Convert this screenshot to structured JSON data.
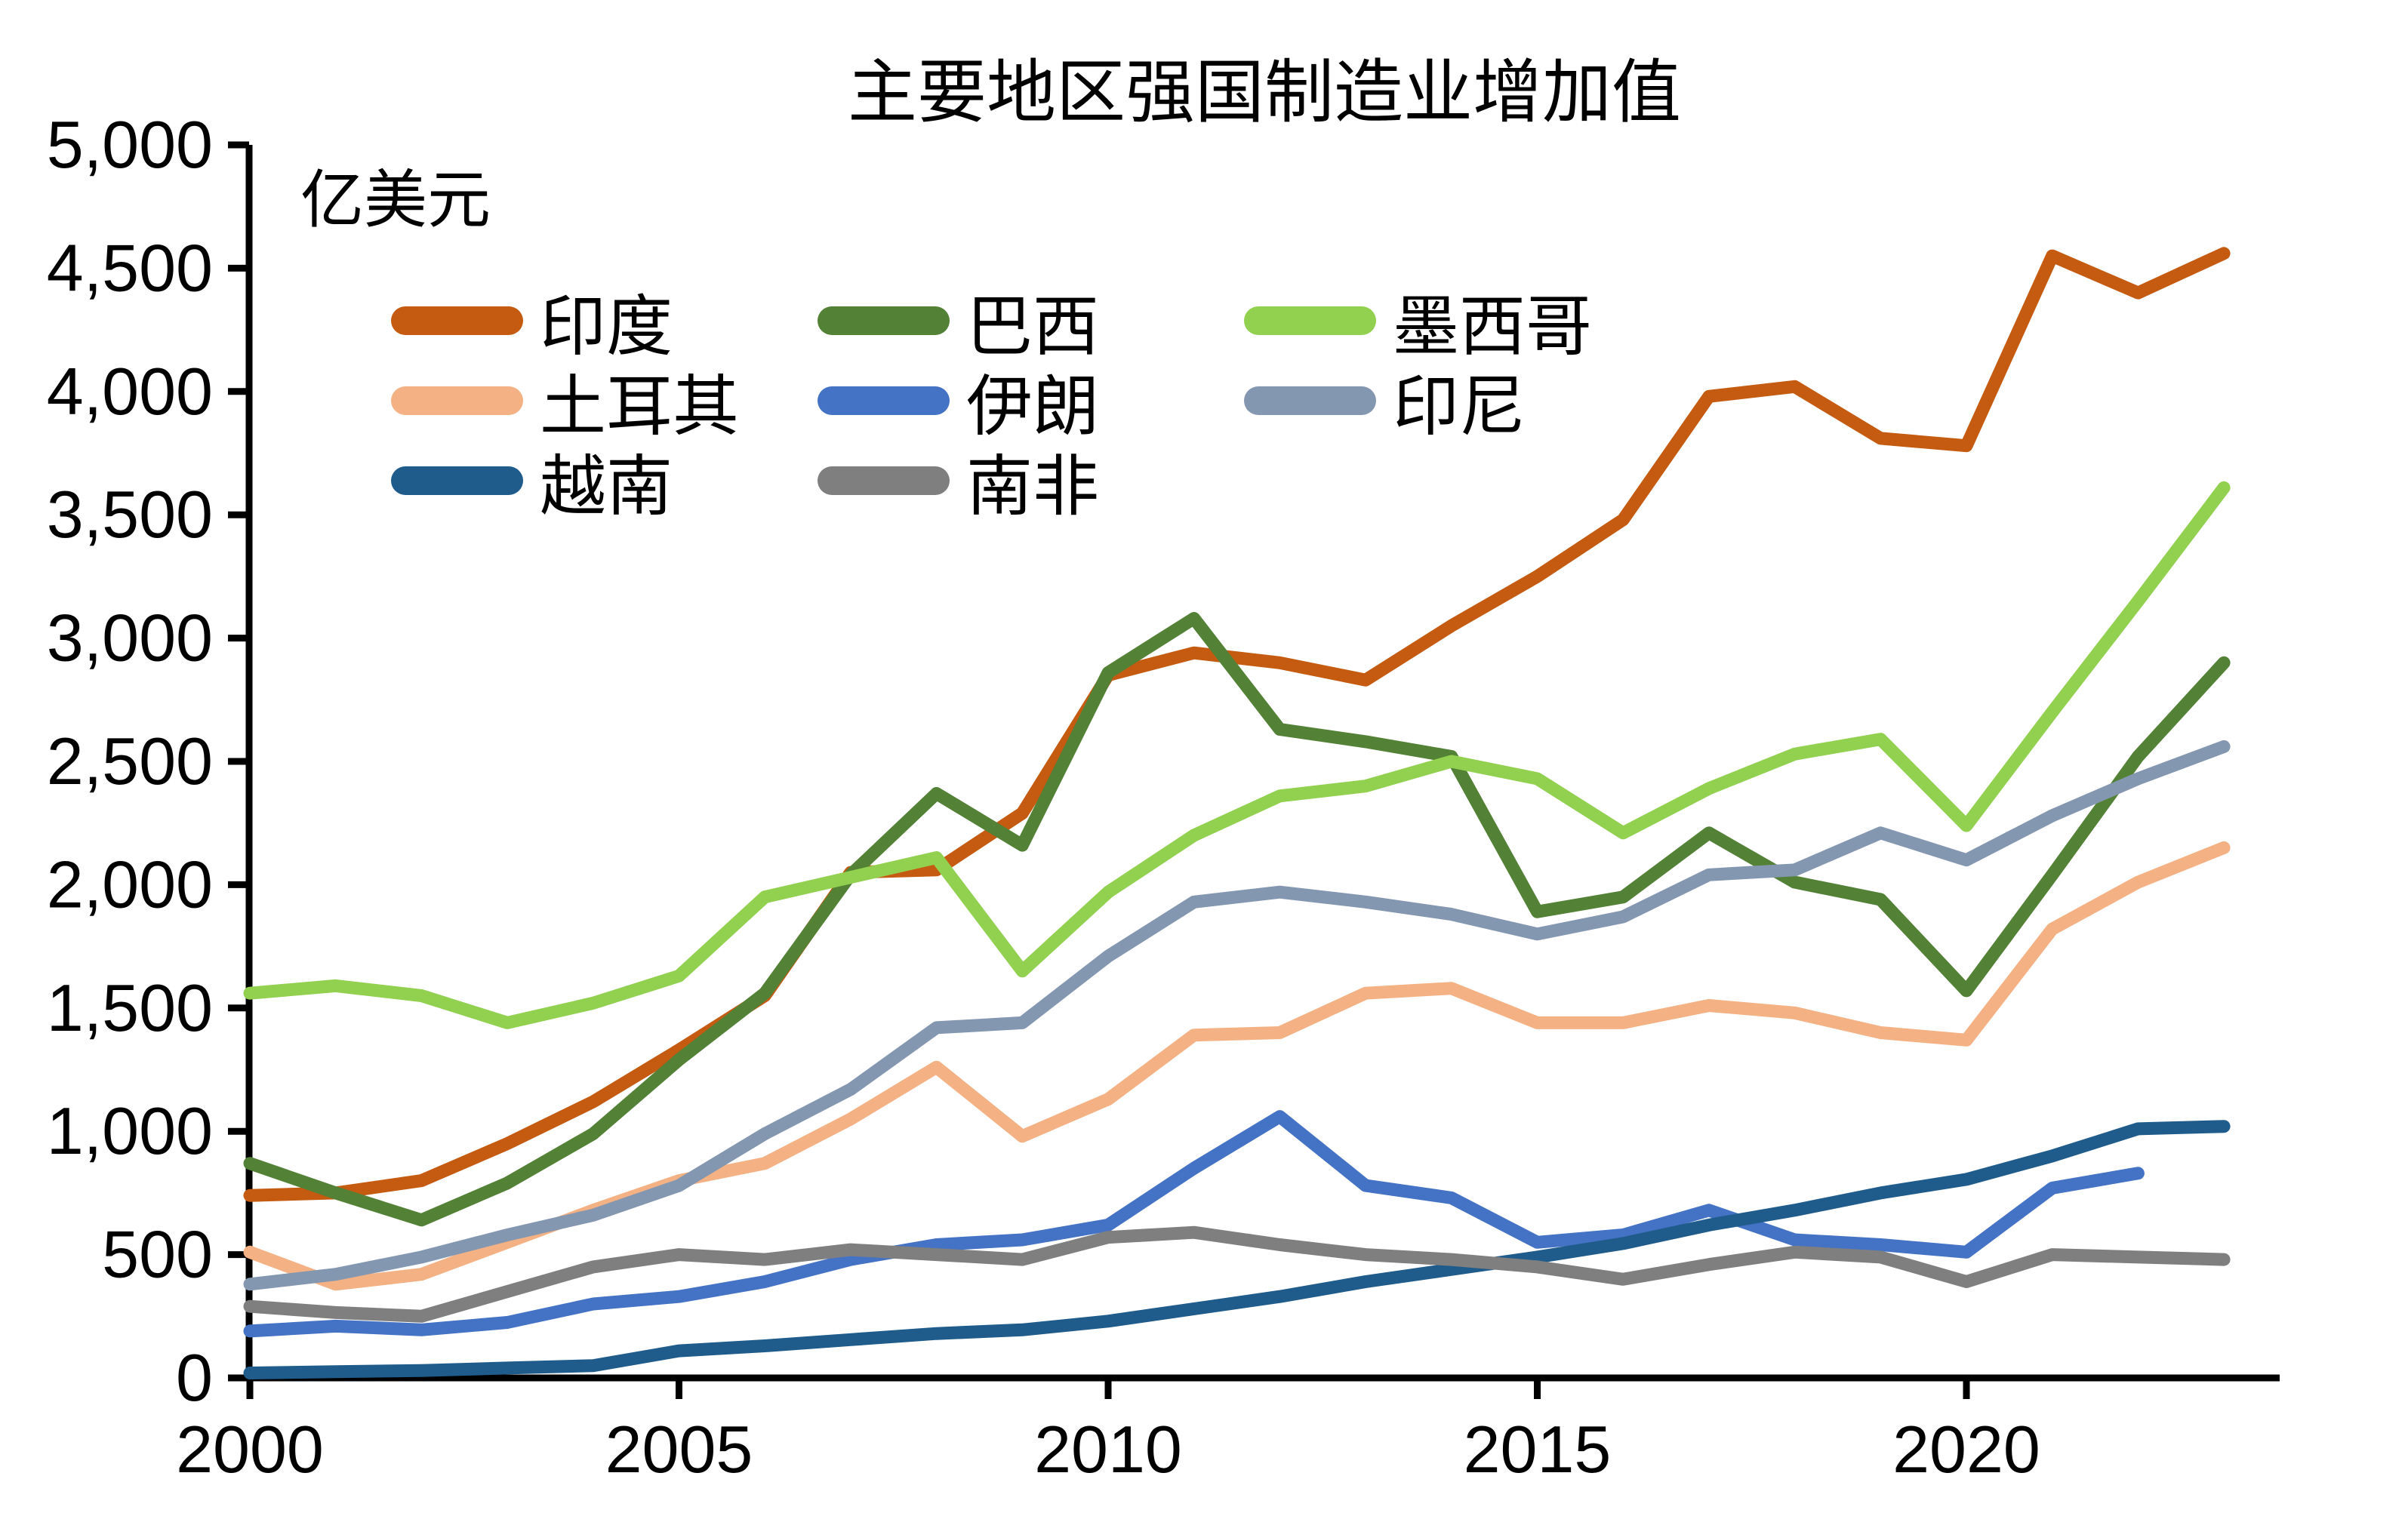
{
  "title": "主要地区强国制造业增加值",
  "unit_label": "亿美元",
  "chart_data": {
    "type": "line",
    "title": "主要地区强国制造业增加值",
    "ylabel": "亿美元",
    "xlabel": "",
    "grid": false,
    "legend_position": "top-left-3-columns",
    "ylim": [
      0,
      5000
    ],
    "ytick_step": 500,
    "xticks": [
      2000,
      2005,
      2010,
      2015,
      2020
    ],
    "x": [
      2000,
      2001,
      2002,
      2003,
      2004,
      2005,
      2006,
      2007,
      2008,
      2009,
      2010,
      2011,
      2012,
      2013,
      2014,
      2015,
      2016,
      2017,
      2018,
      2019,
      2020,
      2021,
      2022,
      2023
    ],
    "series": [
      {
        "name": "印度",
        "slug": "india",
        "color": "#C55A11",
        "values": [
          740,
          750,
          800,
          950,
          1120,
          1330,
          1550,
          2050,
          2060,
          2290,
          2850,
          2940,
          2900,
          2830,
          3050,
          3250,
          3480,
          3980,
          4020,
          3810,
          3780,
          4550,
          4400,
          4560
        ]
      },
      {
        "name": "巴西",
        "slug": "brazil",
        "color": "#538135",
        "values": [
          870,
          750,
          640,
          790,
          990,
          1290,
          1560,
          2040,
          2370,
          2160,
          2860,
          3080,
          2630,
          2580,
          2520,
          1890,
          1950,
          2210,
          2010,
          1940,
          1570,
          2040,
          2520,
          2900
        ]
      },
      {
        "name": "墨西哥",
        "slug": "mexico",
        "color": "#92D050",
        "values": [
          1560,
          1590,
          1550,
          1440,
          1520,
          1630,
          1950,
          2030,
          2110,
          1650,
          1970,
          2200,
          2360,
          2400,
          2500,
          2430,
          2210,
          2390,
          2530,
          2590,
          2240,
          2700,
          3150,
          3610
        ]
      },
      {
        "name": "土耳其",
        "slug": "turkey",
        "color": "#F4B183",
        "values": [
          510,
          380,
          420,
          550,
          680,
          800,
          870,
          1050,
          1260,
          980,
          1130,
          1390,
          1400,
          1560,
          1580,
          1440,
          1440,
          1510,
          1480,
          1400,
          1370,
          1820,
          2010,
          2150
        ]
      },
      {
        "name": "伊朗",
        "slug": "iran",
        "color": "#4472C4",
        "values": [
          190,
          210,
          195,
          225,
          300,
          330,
          390,
          480,
          540,
          560,
          620,
          850,
          1060,
          780,
          730,
          550,
          580,
          680,
          560,
          540,
          510,
          770,
          830,
          null
        ]
      },
      {
        "name": "印尼",
        "slug": "indonesia",
        "color": "#8497B0",
        "values": [
          380,
          420,
          490,
          580,
          660,
          780,
          990,
          1170,
          1420,
          1440,
          1710,
          1930,
          1970,
          1930,
          1880,
          1800,
          1870,
          2040,
          2060,
          2210,
          2100,
          2280,
          2430,
          2560
        ]
      },
      {
        "name": "越南",
        "slug": "vietnam",
        "color": "#1F5C8B",
        "values": [
          20,
          25,
          30,
          40,
          50,
          110,
          130,
          155,
          180,
          195,
          230,
          280,
          330,
          390,
          440,
          490,
          545,
          620,
          680,
          750,
          805,
          900,
          1010,
          1020
        ]
      },
      {
        "name": "南非",
        "slug": "south-africa",
        "color": "#7F7F7F",
        "values": [
          290,
          265,
          250,
          350,
          450,
          500,
          480,
          520,
          500,
          480,
          570,
          590,
          540,
          500,
          480,
          450,
          400,
          460,
          510,
          490,
          390,
          500,
          490,
          480
        ]
      }
    ]
  }
}
